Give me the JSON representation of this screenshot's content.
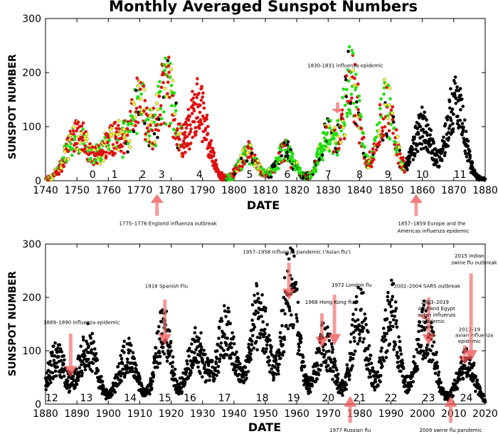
{
  "chart_data": [
    {
      "type": "scatter",
      "title": "Monthly Averaged Sunspot Numbers",
      "xlabel": "DATE",
      "ylabel": "SUNSPOT NUMBER",
      "xlim": [
        1740,
        1880
      ],
      "ylim": [
        0,
        300
      ],
      "xticks": [
        1740,
        1750,
        1760,
        1770,
        1780,
        1790,
        1800,
        1810,
        1820,
        1830,
        1840,
        1850,
        1860,
        1870,
        1880
      ],
      "yticks": [
        0,
        100,
        200,
        300
      ],
      "grid": false,
      "series_colors": {
        "red": "#dd1111",
        "green": "#22dd11",
        "yellow": "#ffff33",
        "black": "#000000"
      },
      "cycles": [
        {
          "label": "0",
          "x": 1755.0
        },
        {
          "label": "1",
          "x": 1762.0
        },
        {
          "label": "2",
          "x": 1771.0
        },
        {
          "label": "3",
          "x": 1777.0
        },
        {
          "label": "4",
          "x": 1789.0
        },
        {
          "label": "5",
          "x": 1805.0
        },
        {
          "label": "6",
          "x": 1817.0
        },
        {
          "label": "7",
          "x": 1830.0
        },
        {
          "label": "8",
          "x": 1840.0
        },
        {
          "label": "9",
          "x": 1849.0
        },
        {
          "label": "10",
          "x": 1860.0
        },
        {
          "label": "11",
          "x": 1872.0
        }
      ],
      "peaks": [
        {
          "x": 1750.0,
          "w": 5,
          "h": 95,
          "color": "mix1"
        },
        {
          "x": 1761.5,
          "w": 5,
          "h": 90,
          "color": "mix1"
        },
        {
          "x": 1770.0,
          "w": 4,
          "h": 150,
          "color": "mix2"
        },
        {
          "x": 1778.5,
          "w": 4,
          "h": 190,
          "color": "mix2"
        },
        {
          "x": 1788.5,
          "w": 4.5,
          "h": 150,
          "color": "red"
        },
        {
          "x": 1804.5,
          "w": 4,
          "h": 55,
          "color": "mix2"
        },
        {
          "x": 1816.5,
          "w": 4,
          "h": 60,
          "color": "mix3"
        },
        {
          "x": 1830.0,
          "w": 4,
          "h": 90,
          "color": "mix3"
        },
        {
          "x": 1837.5,
          "w": 3.5,
          "h": 200,
          "color": "mix2"
        },
        {
          "x": 1848.5,
          "w": 4,
          "h": 150,
          "color": "mix2"
        },
        {
          "x": 1860.0,
          "w": 4,
          "h": 110,
          "color": "black"
        },
        {
          "x": 1870.5,
          "w": 4,
          "h": 160,
          "color": "black"
        }
      ],
      "annotations": [
        {
          "text": "1830-1831 influenza epidemic",
          "tx": 1835.5,
          "ty": 210,
          "arrow": [
            1833.0,
            145,
            1833.0,
            125
          ]
        },
        {
          "text": "1775–1776 England influenza outbreak",
          "tx": 1779.0,
          "ty": -82,
          "arrow": [
            1775.5,
            -65,
            1775.5,
            -25
          ]
        },
        {
          "text": "1857–1859 Europe and the",
          "tx": 1863.0,
          "ty": -82,
          "arrow": [
            1858.0,
            -65,
            1858.0,
            -25
          ]
        },
        {
          "text": "Americas influenza epidemic",
          "tx": 1863.5,
          "ty": -96,
          "arrow": null
        }
      ]
    },
    {
      "type": "scatter",
      "title": "",
      "xlabel": "DATE",
      "ylabel": "SUNSPOT NUMBER",
      "xlim": [
        1880,
        2020
      ],
      "ylim": [
        0,
        300
      ],
      "xticks": [
        1880,
        1890,
        1900,
        1910,
        1920,
        1930,
        1940,
        1950,
        1960,
        1970,
        1980,
        1990,
        2000,
        2010,
        2020
      ],
      "yticks": [
        0,
        100,
        200,
        300
      ],
      "grid": false,
      "cycles": [
        {
          "label": "12",
          "x": 1882.0
        },
        {
          "label": "13",
          "x": 1893.0
        },
        {
          "label": "14",
          "x": 1907.0
        },
        {
          "label": "15",
          "x": 1918.0
        },
        {
          "label": "16",
          "x": 1926.0
        },
        {
          "label": "17",
          "x": 1937.0
        },
        {
          "label": "18",
          "x": 1949.0
        },
        {
          "label": "19",
          "x": 1959.0
        },
        {
          "label": "20",
          "x": 1970.0
        },
        {
          "label": "21",
          "x": 1980.0
        },
        {
          "label": "22",
          "x": 1990.0
        },
        {
          "label": "23",
          "x": 2002.0
        },
        {
          "label": "24",
          "x": 2014.0
        }
      ],
      "peaks": [
        {
          "x": 1883.5,
          "w": 4,
          "h": 95,
          "color": "black"
        },
        {
          "x": 1893.5,
          "w": 4,
          "h": 120,
          "color": "black"
        },
        {
          "x": 1906.0,
          "w": 4,
          "h": 100,
          "color": "black"
        },
        {
          "x": 1917.5,
          "w": 3.5,
          "h": 150,
          "color": "black"
        },
        {
          "x": 1928.0,
          "w": 4,
          "h": 120,
          "color": "black"
        },
        {
          "x": 1937.5,
          "w": 4,
          "h": 150,
          "color": "black"
        },
        {
          "x": 1948.0,
          "w": 4,
          "h": 190,
          "color": "black"
        },
        {
          "x": 1958.0,
          "w": 3.5,
          "h": 250,
          "color": "black"
        },
        {
          "x": 1969.0,
          "w": 4,
          "h": 125,
          "color": "black"
        },
        {
          "x": 1980.0,
          "w": 3.5,
          "h": 190,
          "color": "black"
        },
        {
          "x": 1990.0,
          "w": 3.5,
          "h": 190,
          "color": "black"
        },
        {
          "x": 2001.0,
          "w": 4,
          "h": 160,
          "color": "black"
        },
        {
          "x": 2014.0,
          "w": 4,
          "h": 85,
          "color": "black"
        }
      ],
      "annotations": [
        {
          "text": "1957–1958 influenza pandemic ('Asian flu')",
          "tx": 1960.0,
          "ty": 282,
          "arrow": [
            1957.5,
            265,
            1957.5,
            195
          ]
        },
        {
          "text": "1972 London flu",
          "tx": 1977.5,
          "ty": 220,
          "arrow": [
            1972.0,
            205,
            1972.0,
            110
          ]
        },
        {
          "text": "1968 Hong Kong flu",
          "tx": 1970.5,
          "ty": 188,
          "arrow": [
            1968.0,
            170,
            1968.0,
            105
          ]
        },
        {
          "text": "1918 Spanish Flu",
          "tx": 1918.5,
          "ty": 218,
          "arrow": [
            1918.0,
            196,
            1918.0,
            110
          ]
        },
        {
          "text": "1889–1890 influenza epidemic",
          "tx": 1891.5,
          "ty": 150,
          "arrow": [
            1888.0,
            132,
            1888.0,
            50
          ]
        },
        {
          "text": "2002–2004 SARS outbreak",
          "tx": 2001.5,
          "ty": 218,
          "arrow": [
            2002.0,
            200,
            2002.0,
            110
          ]
        },
        {
          "text": "2003–2019",
          "tx": 2004.0,
          "ty": 188,
          "arrow": null
        },
        {
          "text": "Asia and Egypt",
          "tx": 2004.5,
          "ty": 176,
          "arrow": [
            2001.0,
            170,
            2000.0,
            160
          ]
        },
        {
          "text": "avian influenza",
          "tx": 2004.5,
          "ty": 164,
          "arrow": null
        },
        {
          "text": "epidemic",
          "tx": 2003.5,
          "ty": 152,
          "arrow": null
        },
        {
          "text": "2013–19",
          "tx": 2015.0,
          "ty": 137,
          "arrow": null
        },
        {
          "text": "avian influenza",
          "tx": 2016.5,
          "ty": 126,
          "arrow": null
        },
        {
          "text": "epidemic",
          "tx": 2015.0,
          "ty": 115,
          "arrow": [
            2013.5,
            110,
            2013.5,
            75
          ]
        },
        {
          "text": "2015 Indian",
          "tx": 2015.0,
          "ty": 275,
          "arrow": null
        },
        {
          "text": "swine flu outbreak",
          "tx": 2016.5,
          "ty": 262,
          "arrow": [
            2015.5,
            245,
            2015.5,
            80
          ]
        },
        {
          "text": "1977 Russian flu",
          "tx": 1977.0,
          "ty": -52,
          "arrow": [
            1977.0,
            -35,
            1977.0,
            15
          ]
        },
        {
          "text": "2009 swine flu pandemic",
          "tx": 2009.0,
          "ty": -52,
          "arrow": [
            2009.0,
            -35,
            2009.0,
            15
          ]
        }
      ]
    }
  ]
}
